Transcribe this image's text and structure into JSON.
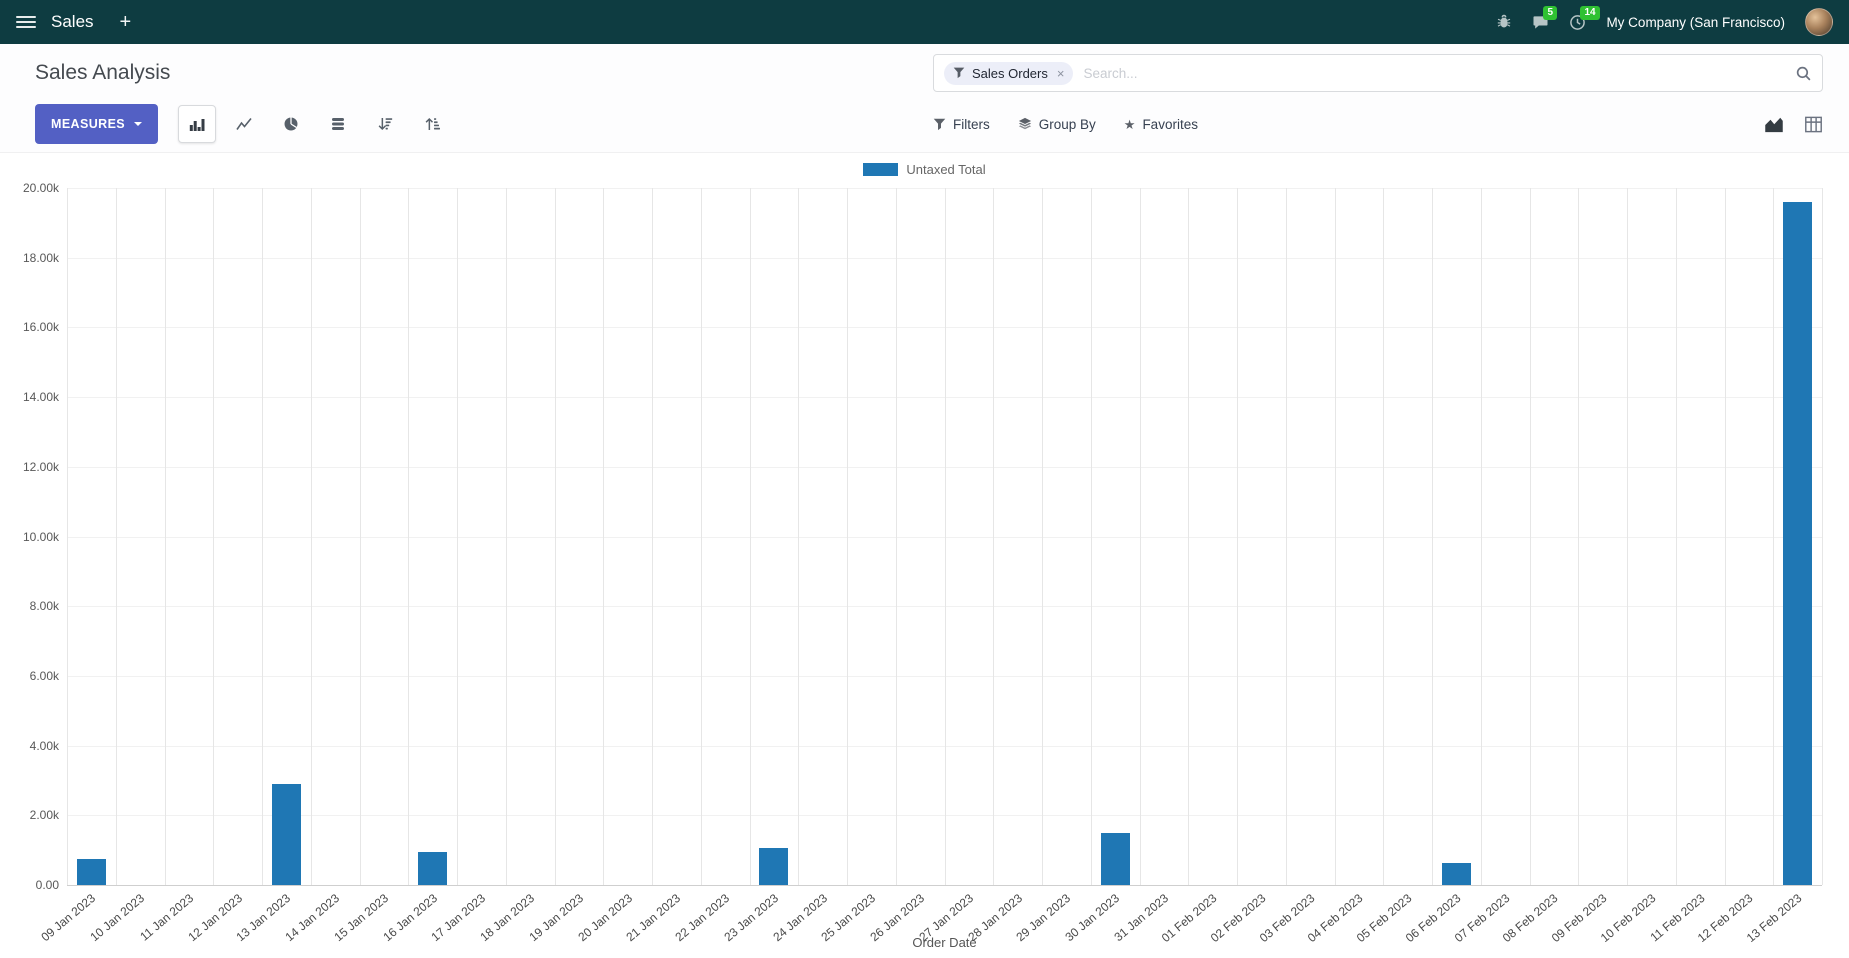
{
  "nav": {
    "app_name": "Sales",
    "new_label": "+",
    "messages_badge": "5",
    "activities_badge": "14",
    "company": "My Company (San Francisco)"
  },
  "control": {
    "title": "Sales Analysis",
    "measures_label": "MEASURES",
    "filters_label": "Filters",
    "group_by_label": "Group By",
    "favorites_label": "Favorites",
    "search": {
      "facet_label": "Sales Orders",
      "facet_remove": "×",
      "placeholder": "Search..."
    }
  },
  "icons": {
    "star": "★"
  },
  "colors": {
    "topbar": "#0e3c41",
    "primary": "#5360c4",
    "badge": "#2fc132",
    "bar": "#1f77b4",
    "facet_bg": "#eceef8"
  },
  "chart_data": {
    "type": "bar",
    "title": "",
    "xlabel": "Order Date",
    "ylabel": "",
    "ylim": [
      0,
      20000
    ],
    "yticks": [
      0,
      2000,
      4000,
      6000,
      8000,
      10000,
      12000,
      14000,
      16000,
      18000,
      20000
    ],
    "ytick_labels": [
      "0.00",
      "2.00k",
      "4.00k",
      "6.00k",
      "8.00k",
      "10.00k",
      "12.00k",
      "14.00k",
      "16.00k",
      "18.00k",
      "20.00k"
    ],
    "grid": true,
    "legend_position": "top",
    "categories": [
      "09 Jan 2023",
      "10 Jan 2023",
      "11 Jan 2023",
      "12 Jan 2023",
      "13 Jan 2023",
      "14 Jan 2023",
      "15 Jan 2023",
      "16 Jan 2023",
      "17 Jan 2023",
      "18 Jan 2023",
      "19 Jan 2023",
      "20 Jan 2023",
      "21 Jan 2023",
      "22 Jan 2023",
      "23 Jan 2023",
      "24 Jan 2023",
      "25 Jan 2023",
      "26 Jan 2023",
      "27 Jan 2023",
      "28 Jan 2023",
      "29 Jan 2023",
      "30 Jan 2023",
      "31 Jan 2023",
      "01 Feb 2023",
      "02 Feb 2023",
      "03 Feb 2023",
      "04 Feb 2023",
      "05 Feb 2023",
      "06 Feb 2023",
      "07 Feb 2023",
      "08 Feb 2023",
      "09 Feb 2023",
      "10 Feb 2023",
      "11 Feb 2023",
      "12 Feb 2023",
      "13 Feb 2023"
    ],
    "series": [
      {
        "name": "Untaxed Total",
        "color": "#1f77b4",
        "values": [
          750,
          0,
          0,
          0,
          2900,
          0,
          0,
          950,
          0,
          0,
          0,
          0,
          0,
          0,
          1050,
          0,
          0,
          0,
          0,
          0,
          0,
          1500,
          0,
          0,
          0,
          0,
          0,
          0,
          620,
          0,
          0,
          0,
          0,
          0,
          0,
          19600
        ]
      }
    ]
  }
}
